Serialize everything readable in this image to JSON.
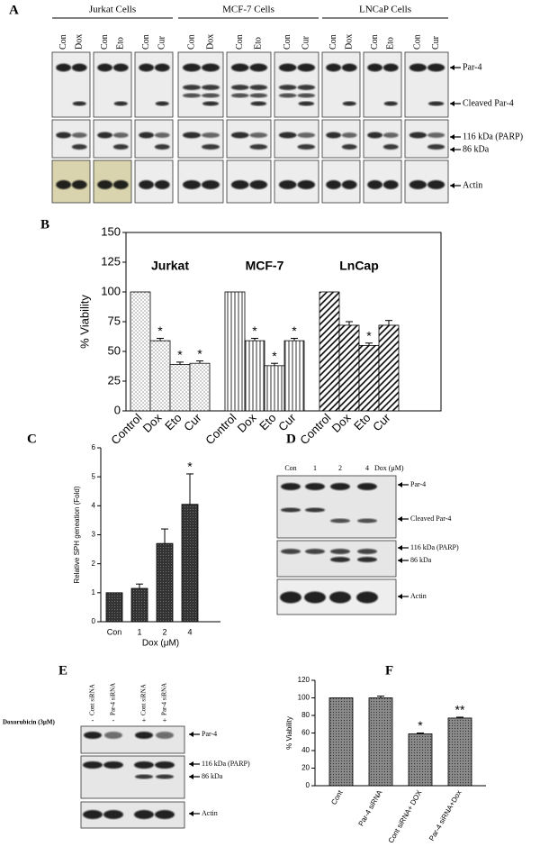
{
  "chart_data": [
    {
      "type": "bar",
      "panel": "B",
      "ylabel": "% Viability",
      "ylim": [
        0,
        150
      ],
      "yticks": [
        0,
        25,
        50,
        75,
        100,
        125,
        150
      ],
      "groups": [
        {
          "name": "Jurkat",
          "hatch": "dots",
          "categories": [
            "Control",
            "Dox",
            "Eto",
            "Cur"
          ],
          "values": [
            100,
            59,
            39,
            40
          ],
          "errors": [
            null,
            2,
            2,
            2
          ],
          "annotations": [
            null,
            "*",
            "*",
            "*"
          ]
        },
        {
          "name": "MCF-7",
          "hatch": "vertical",
          "categories": [
            "Control",
            "Dox",
            "Eto",
            "Cur"
          ],
          "values": [
            100,
            59,
            38,
            59
          ],
          "errors": [
            null,
            2,
            2,
            2
          ],
          "annotations": [
            null,
            "*",
            "*",
            "*"
          ]
        },
        {
          "name": "LnCap",
          "hatch": "diagonal",
          "categories": [
            "Control",
            "Dox",
            "Eto",
            "Cur"
          ],
          "values": [
            100,
            72,
            55,
            72
          ],
          "errors": [
            null,
            3,
            2,
            4
          ],
          "annotations": [
            null,
            null,
            "*",
            null
          ]
        }
      ]
    },
    {
      "type": "bar",
      "panel": "C",
      "ylabel": "Relative SPH geneation (Fold)",
      "xlabel": "Dox (μM)",
      "ylim": [
        0,
        6
      ],
      "yticks": [
        0,
        1,
        2,
        3,
        4,
        5,
        6
      ],
      "hatch": "dark-dots",
      "categories": [
        "Con",
        "1",
        "2",
        "4"
      ],
      "values": [
        1,
        1.15,
        2.7,
        4.05
      ],
      "errors": [
        null,
        0.15,
        0.5,
        1.05
      ],
      "annotations": [
        null,
        null,
        null,
        "*"
      ]
    },
    {
      "type": "bar",
      "panel": "F",
      "ylabel": "% Viability",
      "ylim": [
        0,
        120
      ],
      "yticks": [
        0,
        20,
        40,
        60,
        80,
        100,
        120
      ],
      "hatch": "gray-dots",
      "categories": [
        "Cont",
        "Par-4 siRNA",
        "Cont siRNA+ DOX",
        "Par-4 siRNA+Dox"
      ],
      "values": [
        100,
        100,
        59,
        77
      ],
      "errors": [
        null,
        2,
        1,
        1
      ],
      "annotations": [
        null,
        null,
        "*",
        "**"
      ]
    }
  ],
  "blots": {
    "A": {
      "panel": "A",
      "cell_lines": [
        {
          "name": "Jurkat Cells",
          "lanes": [
            "Con",
            "Dox",
            "Con",
            "Eto",
            "Con",
            "Cur"
          ]
        },
        {
          "name": "MCF-7 Cells",
          "lanes": [
            "Con",
            "Dox",
            "Con",
            "Eto",
            "Con",
            "Cur"
          ]
        },
        {
          "name": "LNCaP Cells",
          "lanes": [
            "Con",
            "Dox",
            "Con",
            "Eto",
            "Con",
            "Cur"
          ]
        }
      ],
      "markers": [
        "Par-4",
        "Cleaved Par-4",
        "116 kDa (PARP)",
        "86 kDa",
        "Actin"
      ]
    },
    "D": {
      "panel": "D",
      "lanes": [
        "Con",
        "1",
        "2",
        "4"
      ],
      "lane_unit": "Dox (μM)",
      "markers": [
        "Par-4",
        "Cleaved Par-4",
        "116 kDa (PARP)",
        "86 kDa",
        "Actin"
      ]
    },
    "E": {
      "panel": "E",
      "lanes": [
        "Cont siRNA",
        "Par-4 siRNA",
        "Cont siRNA",
        "Par-4 siRNA"
      ],
      "treatment": "Doxorubicin (3μM)",
      "treatment_signs": [
        "-",
        "-",
        "+",
        "+"
      ],
      "markers": [
        "Par-4",
        "116 kDa (PARP)",
        "86 kDa",
        "Actin"
      ]
    }
  }
}
